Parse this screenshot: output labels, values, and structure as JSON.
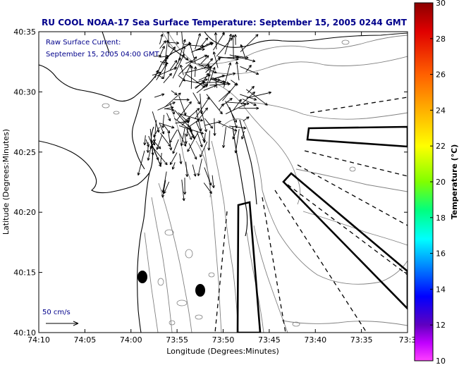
{
  "title": "RU COOL  NOAA-17  Sea Surface Temperature:  September 15, 2005 0244 GMT",
  "current_label": {
    "line1": "Raw Surface Current:",
    "line2": "September 15, 2005 04:00 GMT"
  },
  "scale_label": "50 cm/s",
  "x_axis": {
    "label": "Longitude (Degrees:Minutes)",
    "ticks": [
      "74:10",
      "74:05",
      "74:00",
      "73:55",
      "73:50",
      "73:45",
      "73:40",
      "73:35",
      "73:3"
    ]
  },
  "y_axis": {
    "label": "Latitude (Degrees:Minutes)",
    "ticks": [
      "40:35",
      "40:30",
      "40:25",
      "40:20",
      "40:15",
      "40:10"
    ]
  },
  "colorbar": {
    "label": "Temperature (°C)",
    "ticks": [
      "30",
      "28",
      "26",
      "24",
      "22",
      "20",
      "18",
      "16",
      "14",
      "12",
      "10"
    ],
    "colors": [
      "#c00000",
      "#ff2000",
      "#ff8000",
      "#ffd000",
      "#d0ff00",
      "#40ff40",
      "#00ffc0",
      "#00c0ff",
      "#0040ff",
      "#2000c0",
      "#a000ff",
      "#ff40ff"
    ]
  },
  "colors": {
    "title_text": "#00008b",
    "land_outline": "#000000",
    "contour": "#808080"
  }
}
